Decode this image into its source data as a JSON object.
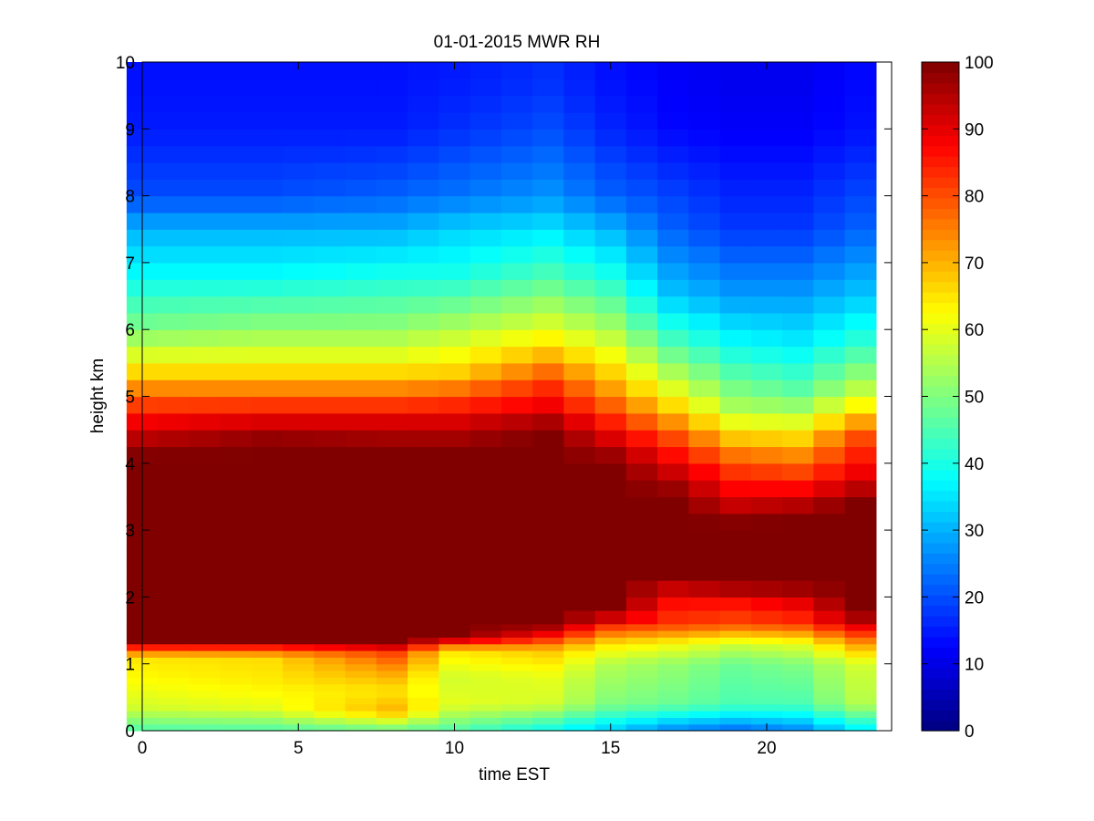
{
  "chart_data": {
    "type": "heatmap",
    "title": "01-01-2015 MWR RH",
    "xlabel": "time EST",
    "ylabel": "height km",
    "xlim": [
      0,
      24
    ],
    "ylim": [
      0,
      10
    ],
    "xticks": [
      0,
      5,
      10,
      15,
      20
    ],
    "yticks": [
      0,
      1,
      2,
      3,
      4,
      5,
      6,
      7,
      8,
      9,
      10
    ],
    "colormap": "jet",
    "colorbar": {
      "min": 0,
      "max": 100,
      "ticks": [
        0,
        10,
        20,
        30,
        40,
        50,
        60,
        70,
        80,
        90,
        100
      ]
    },
    "grid": false,
    "time_hours": [
      0,
      1,
      2,
      3,
      4,
      5,
      6,
      7,
      8,
      9,
      10,
      11,
      12,
      13,
      14,
      15,
      16,
      17,
      18,
      19,
      20,
      21,
      22,
      23
    ],
    "height_km": [
      0,
      0.1,
      0.2,
      0.3,
      0.4,
      0.5,
      0.6,
      0.7,
      0.8,
      0.9,
      1.0,
      1.1,
      1.2,
      1.3,
      1.4,
      1.5,
      1.6,
      1.8,
      2.0,
      2.25,
      2.5,
      2.75,
      3.0,
      3.25,
      3.5,
      3.75,
      4.0,
      4.25,
      4.5,
      4.75,
      5.0,
      5.25,
      5.5,
      5.75,
      6.0,
      6.25,
      6.5,
      6.75,
      7.0,
      7.25,
      7.5,
      7.75,
      8.0,
      8.25,
      8.5,
      8.75,
      9.0,
      9.25,
      9.5,
      9.75
    ],
    "profiles": [
      {
        "hour": 0,
        "rh": [
          [
            0,
            45
          ],
          [
            0.35,
            58
          ],
          [
            0.7,
            62
          ],
          [
            1.1,
            65
          ],
          [
            1.25,
            85
          ],
          [
            1.3,
            100
          ],
          [
            4.1,
            100
          ],
          [
            4.5,
            92
          ],
          [
            5.0,
            78
          ],
          [
            5.5,
            62
          ],
          [
            6.0,
            50
          ],
          [
            6.8,
            38
          ],
          [
            7.5,
            30
          ],
          [
            8.0,
            20
          ],
          [
            9.0,
            15
          ],
          [
            9.75,
            14
          ]
        ]
      },
      {
        "hour": 4,
        "rh": [
          [
            0,
            45
          ],
          [
            0.35,
            60
          ],
          [
            0.7,
            64
          ],
          [
            1.1,
            66
          ],
          [
            1.25,
            85
          ],
          [
            1.3,
            100
          ],
          [
            4.3,
            100
          ],
          [
            4.6,
            92
          ],
          [
            5.0,
            78
          ],
          [
            5.5,
            62
          ],
          [
            6.0,
            52
          ],
          [
            6.8,
            38
          ],
          [
            7.5,
            30
          ],
          [
            8.0,
            20
          ],
          [
            9.0,
            15
          ],
          [
            9.75,
            14
          ]
        ]
      },
      {
        "hour": 8,
        "rh": [
          [
            0,
            47
          ],
          [
            0.3,
            70
          ],
          [
            0.6,
            65
          ],
          [
            0.9,
            72
          ],
          [
            1.2,
            82
          ],
          [
            1.3,
            100
          ],
          [
            4.2,
            100
          ],
          [
            4.6,
            92
          ],
          [
            5.0,
            78
          ],
          [
            5.5,
            62
          ],
          [
            6.0,
            52
          ],
          [
            6.8,
            40
          ],
          [
            7.5,
            30
          ],
          [
            8.0,
            22
          ],
          [
            9.0,
            15
          ],
          [
            9.75,
            14
          ]
        ]
      },
      {
        "hour": 10,
        "rh": [
          [
            0,
            45
          ],
          [
            0.4,
            60
          ],
          [
            0.8,
            58
          ],
          [
            1.2,
            65
          ],
          [
            1.35,
            90
          ],
          [
            1.4,
            100
          ],
          [
            4.2,
            100
          ],
          [
            4.6,
            92
          ],
          [
            5.0,
            80
          ],
          [
            5.4,
            66
          ],
          [
            6.0,
            55
          ],
          [
            6.8,
            40
          ],
          [
            7.5,
            33
          ],
          [
            8.0,
            24
          ],
          [
            9.0,
            17
          ],
          [
            9.75,
            15
          ]
        ]
      },
      {
        "hour": 13,
        "rh": [
          [
            0,
            38
          ],
          [
            0.4,
            58
          ],
          [
            0.8,
            60
          ],
          [
            1.2,
            68
          ],
          [
            1.4,
            85
          ],
          [
            1.6,
            100
          ],
          [
            4.5,
            100
          ],
          [
            4.8,
            90
          ],
          [
            5.2,
            82
          ],
          [
            5.6,
            70
          ],
          [
            6.0,
            60
          ],
          [
            6.8,
            45
          ],
          [
            7.5,
            35
          ],
          [
            8.0,
            27
          ],
          [
            9.0,
            20
          ],
          [
            9.75,
            17
          ]
        ]
      },
      {
        "hour": 15,
        "rh": [
          [
            0,
            32
          ],
          [
            0.4,
            50
          ],
          [
            1.0,
            55
          ],
          [
            1.3,
            65
          ],
          [
            1.6,
            85
          ],
          [
            1.8,
            100
          ],
          [
            4.0,
            100
          ],
          [
            4.3,
            93
          ],
          [
            4.8,
            80
          ],
          [
            5.2,
            70
          ],
          [
            5.8,
            58
          ],
          [
            6.8,
            40
          ],
          [
            7.5,
            30
          ],
          [
            8.0,
            22
          ],
          [
            9.0,
            16
          ],
          [
            9.75,
            14
          ]
        ]
      },
      {
        "hour": 17,
        "rh": [
          [
            0,
            25
          ],
          [
            0.4,
            48
          ],
          [
            1.0,
            52
          ],
          [
            1.3,
            62
          ],
          [
            1.6,
            82
          ],
          [
            2.0,
            88
          ],
          [
            2.3,
            100
          ],
          [
            3.5,
            100
          ],
          [
            3.9,
            92
          ],
          [
            4.4,
            80
          ],
          [
            5.0,
            62
          ],
          [
            5.8,
            45
          ],
          [
            6.5,
            32
          ],
          [
            7.5,
            22
          ],
          [
            9.0,
            13
          ],
          [
            9.75,
            12
          ]
        ]
      },
      {
        "hour": 19,
        "rh": [
          [
            0,
            22
          ],
          [
            0.4,
            45
          ],
          [
            1.0,
            48
          ],
          [
            1.3,
            58
          ],
          [
            1.6,
            80
          ],
          [
            2.0,
            88
          ],
          [
            2.2,
            100
          ],
          [
            3.1,
            100
          ],
          [
            3.5,
            90
          ],
          [
            4.0,
            80
          ],
          [
            4.8,
            55
          ],
          [
            5.8,
            38
          ],
          [
            6.5,
            28
          ],
          [
            7.5,
            18
          ],
          [
            9.0,
            12
          ],
          [
            9.75,
            11
          ]
        ]
      },
      {
        "hour": 21,
        "rh": [
          [
            0,
            25
          ],
          [
            0.4,
            45
          ],
          [
            1.0,
            50
          ],
          [
            1.3,
            60
          ],
          [
            1.6,
            82
          ],
          [
            2.0,
            92
          ],
          [
            2.2,
            100
          ],
          [
            3.2,
            100
          ],
          [
            3.6,
            88
          ],
          [
            4.2,
            72
          ],
          [
            5.0,
            48
          ],
          [
            5.8,
            36
          ],
          [
            6.5,
            28
          ],
          [
            7.5,
            18
          ],
          [
            9.0,
            12
          ],
          [
            9.75,
            11
          ]
        ]
      },
      {
        "hour": 23,
        "rh": [
          [
            0,
            35
          ],
          [
            0.4,
            55
          ],
          [
            1.0,
            58
          ],
          [
            1.3,
            72
          ],
          [
            1.6,
            92
          ],
          [
            1.8,
            100
          ],
          [
            3.4,
            100
          ],
          [
            3.8,
            90
          ],
          [
            4.4,
            80
          ],
          [
            5.0,
            58
          ],
          [
            5.8,
            42
          ],
          [
            6.5,
            32
          ],
          [
            7.5,
            22
          ],
          [
            9.0,
            14
          ],
          [
            9.75,
            13
          ]
        ]
      }
    ]
  }
}
